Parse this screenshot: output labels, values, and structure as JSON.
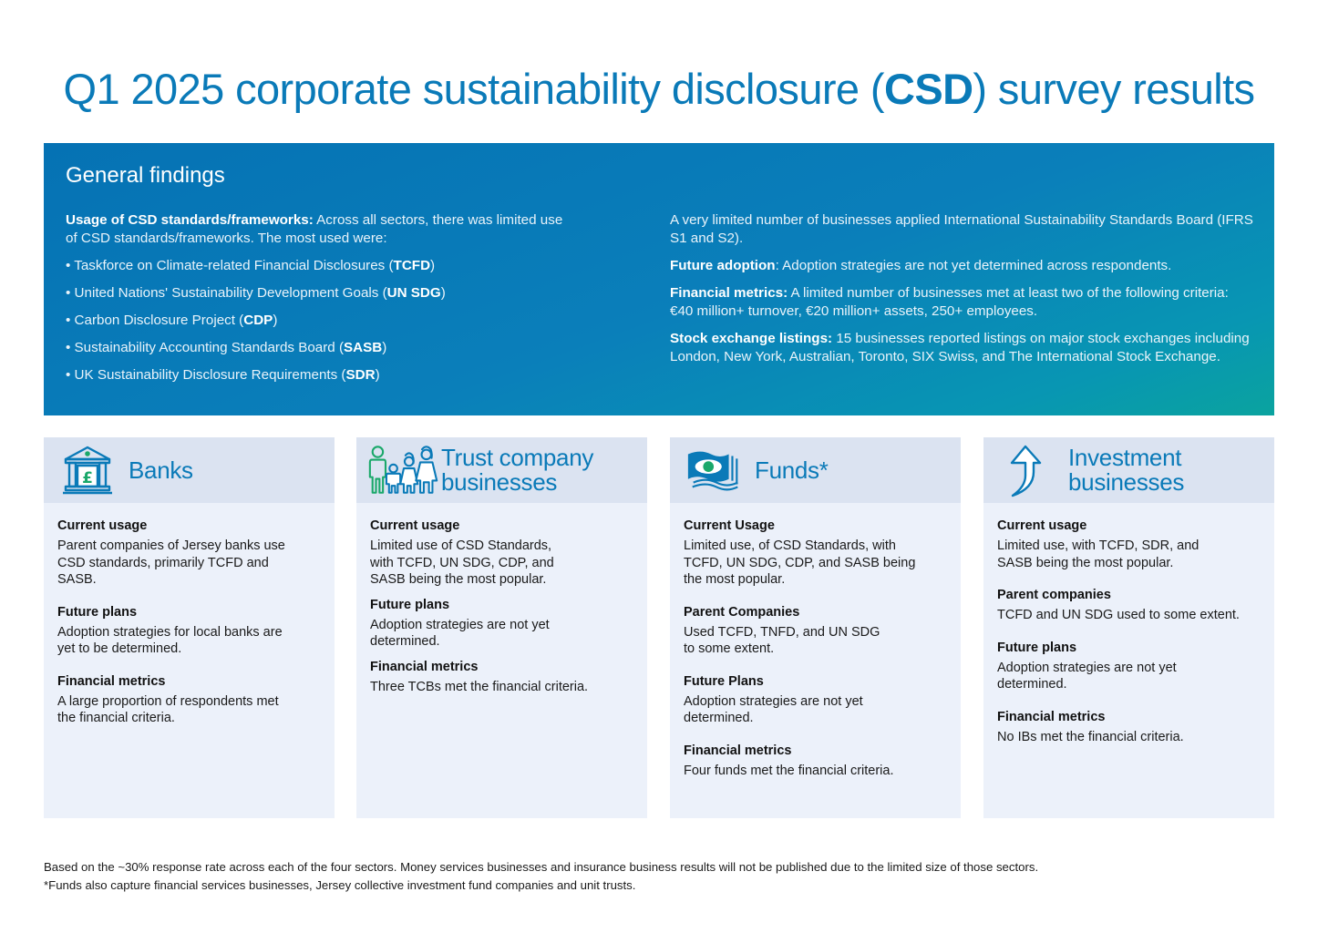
{
  "title": {
    "prefix": "Q1 2025 corporate sustainability disclosure (",
    "bold": "CSD",
    "suffix": ") survey results"
  },
  "general": {
    "heading": "General findings",
    "left": {
      "intro_bold": "Usage of CSD standards/frameworks:",
      "intro_text": " Across all sectors, there was limited use of CSD standards/frameworks. The most used were:",
      "bullets": [
        {
          "text": "• Taskforce on Climate-related Financial Disclosures (",
          "abbr": "TCFD",
          "close": ")"
        },
        {
          "text": "• United Nations' Sustainability Development Goals (",
          "abbr": "UN SDG",
          "close": ")"
        },
        {
          "text": "• Carbon Disclosure Project (",
          "abbr": "CDP",
          "close": ")"
        },
        {
          "text": "• Sustainability Accounting Standards Board (",
          "abbr": "SASB",
          "close": ")"
        },
        {
          "text": "• UK Sustainability Disclosure Requirements (",
          "abbr": "SDR",
          "close": ")"
        }
      ]
    },
    "right": {
      "ifrs_text": "A very limited number of businesses applied International Sustainability Standards Board (IFRS S1 and S2).",
      "future_bold": "Future adoption",
      "future_text": ": Adoption strategies are not yet determined across respondents.",
      "financial_bold": "Financial metrics:",
      "financial_text": " A limited number of businesses met at least two of the following criteria: €40 million+ turnover, €20 million+ assets, 250+ employees.",
      "stock_bold": "Stock exchange listings:",
      "stock_text": " 15 businesses reported listings on major stock exchanges including London, New York, Australian, Toronto, SIX Swiss, and The International Stock Exchange."
    }
  },
  "cards": [
    {
      "title": "Banks",
      "icon": "bank-icon",
      "sections": [
        {
          "heading": "Current usage",
          "text": "Parent companies of Jersey banks use CSD standards, primarily TCFD and SASB."
        },
        {
          "heading": "Future plans",
          "text": "Adoption strategies for local banks are yet to be determined."
        },
        {
          "heading": "Financial metrics",
          "text": "A large proportion of respondents met the financial criteria."
        }
      ]
    },
    {
      "title": "Trust company businesses",
      "icon": "family-icon",
      "sections": [
        {
          "heading": "Current usage",
          "text": "Limited use of CSD Standards, with TCFD, UN SDG, CDP, and SASB being the most popular."
        },
        {
          "heading": "Future plans",
          "text": "Adoption strategies are not yet determined."
        },
        {
          "heading": "Financial metrics",
          "text": "Three TCBs met the financial criteria."
        }
      ]
    },
    {
      "title": "Funds*",
      "icon": "banknotes-icon",
      "sections": [
        {
          "heading": "Current Usage",
          "text": "Limited use, of CSD Standards, with TCFD, UN SDG, CDP, and SASB being the most popular."
        },
        {
          "heading": "Parent Companies",
          "text": "Used TCFD, TNFD, and UN SDG to some extent."
        },
        {
          "heading": "Future Plans",
          "text": "Adoption strategies are not yet determined."
        },
        {
          "heading": "Financial metrics",
          "text": "Four funds met the financial criteria."
        }
      ]
    },
    {
      "title": "Investment businesses",
      "icon": "arrow-up-icon",
      "sections": [
        {
          "heading": "Current usage",
          "text": "Limited use, with TCFD, SDR, and SASB being the most popular."
        },
        {
          "heading": "Parent companies",
          "text": "TCFD and UN SDG used to some extent."
        },
        {
          "heading": "Future plans",
          "text": "Adoption strategies are not yet determined."
        },
        {
          "heading": "Financial metrics",
          "text": "No IBs met the financial criteria."
        }
      ]
    }
  ],
  "footer": {
    "line1": "Based on the ~30% response rate across each of the four sectors. Money services businesses and insurance business results will not be published due to the limited size of those sectors.",
    "line2": "*Funds also capture financial services businesses, Jersey collective investment fund companies and unit trusts."
  },
  "colors": {
    "brand_blue": "#0a7ab8",
    "accent_green": "#1aa86a",
    "card_bg": "#ecf1fa",
    "card_header_bg": "#dbe3f1"
  }
}
